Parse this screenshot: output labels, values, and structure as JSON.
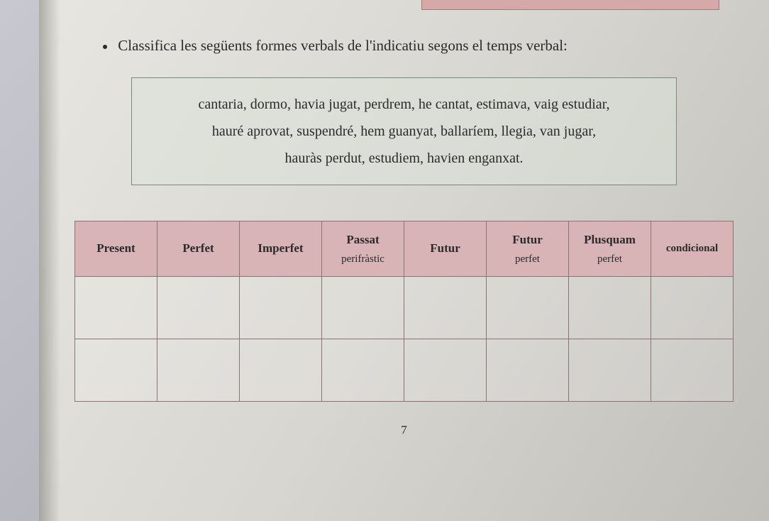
{
  "instruction": "Classifica les següents formes verbals de l'indicatiu segons el temps verbal:",
  "word_box": {
    "line1": "cantaria, dormo, havia jugat, perdrem, he cantat, estimava, vaig estudiar,",
    "line2": "hauré aprovat,  suspendré,  hem guanyat,  ballaríem,  llegia,  van jugar,",
    "line3": "hauràs perdut, estudiem, havien enganxat."
  },
  "table": {
    "type": "table",
    "columns": [
      {
        "label": "Present"
      },
      {
        "label": "Perfet"
      },
      {
        "label": "Imperfet"
      },
      {
        "label": "Passat",
        "sublabel": "perifràstic"
      },
      {
        "label": "Futur"
      },
      {
        "label": "Futur",
        "sublabel": "perfet"
      },
      {
        "label": "Plusquam",
        "sublabel": "perfet"
      },
      {
        "label": "condicional"
      }
    ],
    "empty_rows": 2,
    "header_bg": "#d8b4b6",
    "border_color": "#8a7277",
    "header_fontsize": 17,
    "sub_fontsize": 15
  },
  "page_number": "7"
}
